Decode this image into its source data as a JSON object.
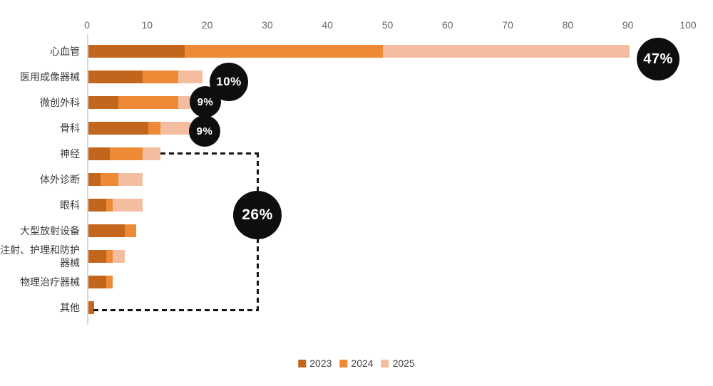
{
  "chart_data": {
    "type": "bar",
    "orientation": "horizontal",
    "stacked": true,
    "title": "",
    "xlabel": "",
    "ylabel": "",
    "categories": [
      "心血管",
      "医用成像器械",
      "微创外科",
      "骨科",
      "神经",
      "体外诊断",
      "眼科",
      "大型放射设备",
      "注射、护理和防护器械",
      "物理治疗器械",
      "其他"
    ],
    "series": [
      {
        "name": "2023",
        "color": "#c2661e",
        "values": [
          16,
          9,
          5,
          10,
          3.5,
          2,
          3,
          6,
          3,
          3,
          1
        ]
      },
      {
        "name": "2024",
        "color": "#ee8a36",
        "values": [
          33,
          6,
          10,
          2,
          5.5,
          3,
          1,
          2,
          1,
          1,
          0
        ]
      },
      {
        "name": "2025",
        "color": "#f4bda0",
        "values": [
          41,
          4,
          2,
          5,
          3,
          4,
          5,
          0,
          2,
          0,
          0
        ]
      }
    ],
    "xlim": [
      0,
      100
    ],
    "x_ticks": [
      0,
      10,
      20,
      30,
      40,
      50,
      60,
      70,
      80,
      90,
      100
    ],
    "axis_position": "top",
    "grid": false,
    "legend_position": "bottom",
    "annotations": {
      "badges": [
        {
          "label": "47%",
          "category": "心血管"
        },
        {
          "label": "10%",
          "category": "医用成像器械"
        },
        {
          "label": "9%",
          "category": "微创外科"
        },
        {
          "label": "9%",
          "category": "骨科"
        },
        {
          "label": "26%",
          "type": "group",
          "category_range": [
            "神经",
            "其他"
          ],
          "connector": "dashed"
        }
      ],
      "badge_bg": "#0e0e0e",
      "badge_text_color": "#ffffff",
      "dash_color": "#141414"
    }
  },
  "legend": {
    "items": [
      {
        "label": "2023",
        "color": "#c2661e"
      },
      {
        "label": "2024",
        "color": "#ee8a36"
      },
      {
        "label": "2025",
        "color": "#f4bda0"
      }
    ]
  }
}
